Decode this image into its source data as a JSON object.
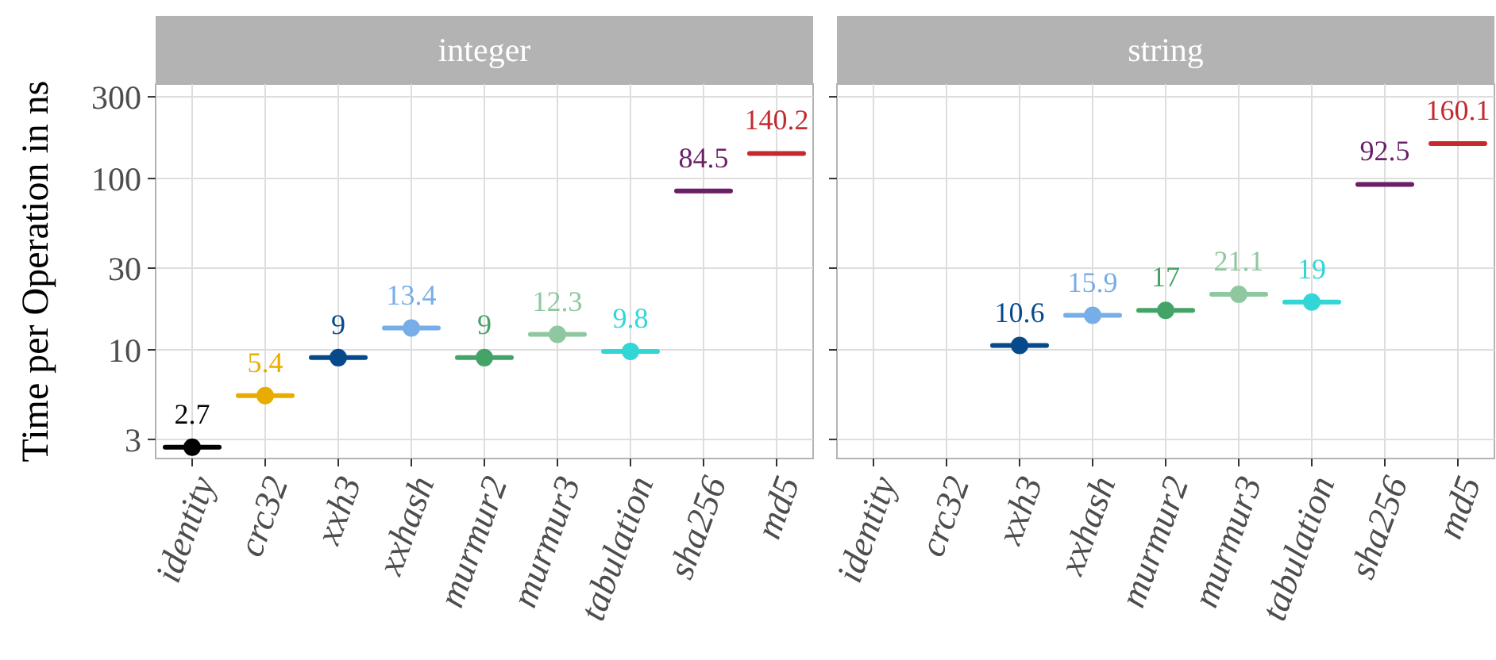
{
  "chart_data": [
    {
      "type": "box",
      "title": "integer",
      "ylabel": "Time per Operation in ns",
      "categories": [
        "identity",
        "crc32",
        "xxh3",
        "xxhash",
        "murmur2",
        "murmur3",
        "tabulation",
        "sha256",
        "md5"
      ],
      "log": "y",
      "ylim": [
        2.32,
        356
      ],
      "yticks": [
        3,
        10,
        30,
        100,
        300
      ],
      "grid": true,
      "series": [
        {
          "type": "box",
          "colors": [
            "#000000",
            "#e8ac00",
            "#064a8c",
            "#78aee8",
            "#44a468",
            "#8fc7a0",
            "#33d6d6",
            "#6b1f66",
            "#c42a2e"
          ],
          "boxes": [
            {
              "low": 2.7,
              "q1": 2.7,
              "median": 2.7,
              "q3": 2.7,
              "high": 2.7
            },
            {
              "low": 5.4,
              "q1": 5.4,
              "median": 5.4,
              "q3": 5.4,
              "high": 5.4
            },
            {
              "low": 9,
              "q1": 9,
              "median": 9,
              "q3": 9,
              "high": 9
            },
            {
              "low": 13.4,
              "q1": 13.4,
              "median": 13.4,
              "q3": 13.4,
              "high": 13.4
            },
            {
              "low": 9,
              "q1": 9,
              "median": 9,
              "q3": 9,
              "high": 9
            },
            {
              "low": 12.3,
              "q1": 12.3,
              "median": 12.3,
              "q3": 12.3,
              "high": 12.3
            },
            {
              "low": 9.8,
              "q1": 9.8,
              "median": 9.8,
              "q3": 9.8,
              "high": 9.8
            },
            {
              "low": 84.5,
              "q1": 84.5,
              "median": 84.5,
              "q3": 84.5,
              "high": 84.5
            },
            {
              "low": 140.2,
              "q1": 140.2,
              "median": 140.2,
              "q3": 140.2,
              "high": 140.2
            }
          ]
        },
        {
          "type": "scatter",
          "marker": "circle",
          "x": [
            "identity",
            "crc32",
            "xxh3",
            "xxhash",
            "murmur2",
            "murmur3",
            "tabulation"
          ],
          "colors": [
            "#000000",
            "#e8ac00",
            "#064a8c",
            "#78aee8",
            "#44a468",
            "#8fc7a0",
            "#33d6d6"
          ],
          "values": [
            2.7,
            5.4,
            9,
            13.4,
            9,
            12.3,
            9.8
          ]
        }
      ],
      "annotations": [
        {
          "text": "2.7",
          "x": "identity",
          "y": 2.7
        },
        {
          "text": "5.4",
          "x": "crc32",
          "y": 5.4
        },
        {
          "text": "9",
          "x": "xxh3",
          "y": 9
        },
        {
          "text": "13.4",
          "x": "xxhash",
          "y": 13.4
        },
        {
          "text": "9",
          "x": "murmur2",
          "y": 9
        },
        {
          "text": "12.3",
          "x": "murmur3",
          "y": 12.3
        },
        {
          "text": "9.8",
          "x": "tabulation",
          "y": 9.8
        },
        {
          "text": "84.5",
          "x": "sha256",
          "y": 84.5
        },
        {
          "text": "140.2",
          "x": "md5",
          "y": 140.2
        }
      ]
    },
    {
      "type": "box",
      "title": "string",
      "categories": [
        "identity",
        "crc32",
        "xxh3",
        "xxhash",
        "murmur2",
        "murmur3",
        "tabulation",
        "sha256",
        "md5"
      ],
      "log": "y",
      "ylim": [
        2.32,
        356
      ],
      "yticks": [
        3,
        10,
        30,
        100,
        300
      ],
      "grid": true,
      "tick_labels": "x",
      "series": [
        {
          "type": "box",
          "colors": [
            null,
            null,
            "#064a8c",
            "#78aee8",
            "#44a468",
            "#8fc7a0",
            "#33d6d6",
            "#6b1f66",
            "#c42a2e"
          ],
          "boxes": [
            null,
            null,
            {
              "low": 10.6,
              "q1": 10.6,
              "median": 10.6,
              "q3": 10.6,
              "high": 10.6
            },
            {
              "low": 15.9,
              "q1": 15.9,
              "median": 15.9,
              "q3": 15.9,
              "high": 15.9
            },
            {
              "low": 17,
              "q1": 17,
              "median": 17,
              "q3": 17,
              "high": 17
            },
            {
              "low": 21.1,
              "q1": 21.1,
              "median": 21.1,
              "q3": 21.1,
              "high": 21.1
            },
            {
              "low": 19,
              "q1": 19,
              "median": 19,
              "q3": 19,
              "high": 19
            },
            {
              "low": 92.5,
              "q1": 92.5,
              "median": 92.5,
              "q3": 92.5,
              "high": 92.5
            },
            {
              "low": 160.1,
              "q1": 160.1,
              "median": 160.1,
              "q3": 160.1,
              "high": 160.1
            }
          ]
        },
        {
          "type": "scatter",
          "marker": "circle",
          "x": [
            "xxh3",
            "xxhash",
            "murmur2",
            "murmur3",
            "tabulation"
          ],
          "colors": [
            "#064a8c",
            "#78aee8",
            "#44a468",
            "#8fc7a0",
            "#33d6d6"
          ],
          "values": [
            10.6,
            15.9,
            17,
            21.1,
            19
          ]
        }
      ],
      "annotations": [
        {
          "text": "10.6",
          "x": "xxh3",
          "y": 10.6
        },
        {
          "text": "15.9",
          "x": "xxhash",
          "y": 15.9
        },
        {
          "text": "17",
          "x": "murmur2",
          "y": 17
        },
        {
          "text": "21.1",
          "x": "murmur3",
          "y": 21.1
        },
        {
          "text": "19",
          "x": "tabulation",
          "y": 19
        },
        {
          "text": "92.5",
          "x": "sha256",
          "y": 92.5
        },
        {
          "text": "160.1",
          "x": "md5",
          "y": 160.1
        }
      ]
    }
  ]
}
